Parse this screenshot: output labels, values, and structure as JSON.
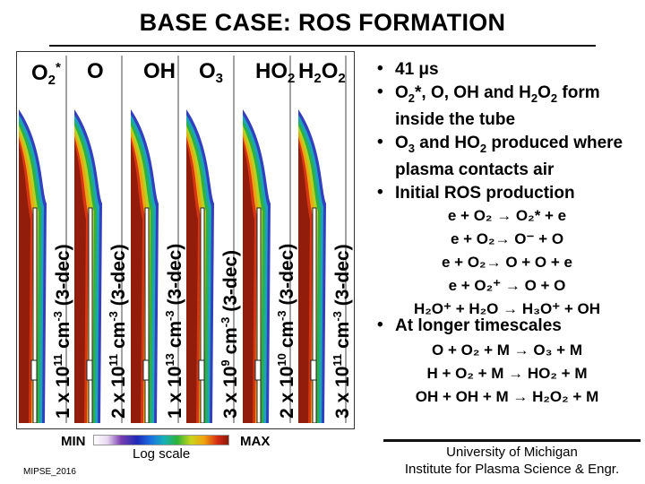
{
  "title": "BASE CASE: ROS FORMATION",
  "panels": [
    {
      "species": "O",
      "sub": "2",
      "sup": "*",
      "scale_coef": "1 x 10",
      "scale_exp": "11",
      "scale_rest": " cm",
      "scale_unit_exp": "-3",
      "scale_dec": " (3-dec)",
      "peak_color": "#d42a14"
    },
    {
      "species": "O",
      "sub": "",
      "sup": "",
      "scale_coef": "2 x 10",
      "scale_exp": "11",
      "scale_rest": " cm",
      "scale_unit_exp": "-3",
      "scale_dec": " (3-dec)",
      "peak_color": "#d42a14"
    },
    {
      "species": "OH",
      "sub": "",
      "sup": "",
      "scale_coef": "1 x 10",
      "scale_exp": "13",
      "scale_rest": " cm",
      "scale_unit_exp": "-3",
      "scale_dec": " (3-dec)",
      "peak_color": "#d42a14"
    },
    {
      "species": "O",
      "sub": "3",
      "sup": "",
      "scale_coef": "3 x 10",
      "scale_exp": "9",
      "scale_rest": " cm",
      "scale_unit_exp": "-3",
      "scale_dec": " (3-dec)",
      "peak_color": "#d42a14"
    },
    {
      "species": "HO",
      "sub": "2",
      "sup": "",
      "scale_coef": "2 x 10",
      "scale_exp": "10",
      "scale_rest": " cm",
      "scale_unit_exp": "-3",
      "scale_dec": " (3-dec)",
      "peak_color": "#d42a14"
    },
    {
      "species": "H",
      "sub": "2",
      "species2": "O",
      "sub2": "2",
      "scale_coef": "3 x 10",
      "scale_exp": "11",
      "scale_rest": " cm",
      "scale_unit_exp": "-3",
      "scale_dec": " (3-dec)",
      "peak_color": "#d42a14"
    }
  ],
  "bullets": [
    {
      "id": "time",
      "parts": [
        "41 ",
        "μ",
        "s"
      ]
    },
    {
      "id": "inside",
      "parts": [
        "O",
        "2",
        "*, O, OH and H",
        "2",
        "O",
        "2",
        " form inside the tube"
      ]
    },
    {
      "id": "contact",
      "parts": [
        "O",
        "3",
        " and HO",
        "2",
        " produced where plasma contacts air"
      ]
    },
    {
      "id": "initial",
      "parts": [
        "Initial ROS production"
      ]
    },
    {
      "id": "longer",
      "parts": [
        "At longer timescales"
      ]
    }
  ],
  "equations_initial": [
    "e + O₂ → O₂* + e",
    "e + O₂→ O⁻ + O",
    "e + O₂→ O + O + e",
    "e + O₂⁺ → O + O",
    "H₂O⁺ + H₂O → H₃O⁺ + OH"
  ],
  "equations_longer": [
    "O + O₂ + M → O₃ + M",
    "H + O₂ + M → HO₂ + M",
    "OH + OH + M → H₂O₂ + M"
  ],
  "colorbar": {
    "min_label": "MIN",
    "max_label": "MAX",
    "scale_label": "Log scale"
  },
  "conference": "MIPSE_2016",
  "affiliation": [
    "University of Michigan",
    "Institute for Plasma Science & Engr."
  ]
}
